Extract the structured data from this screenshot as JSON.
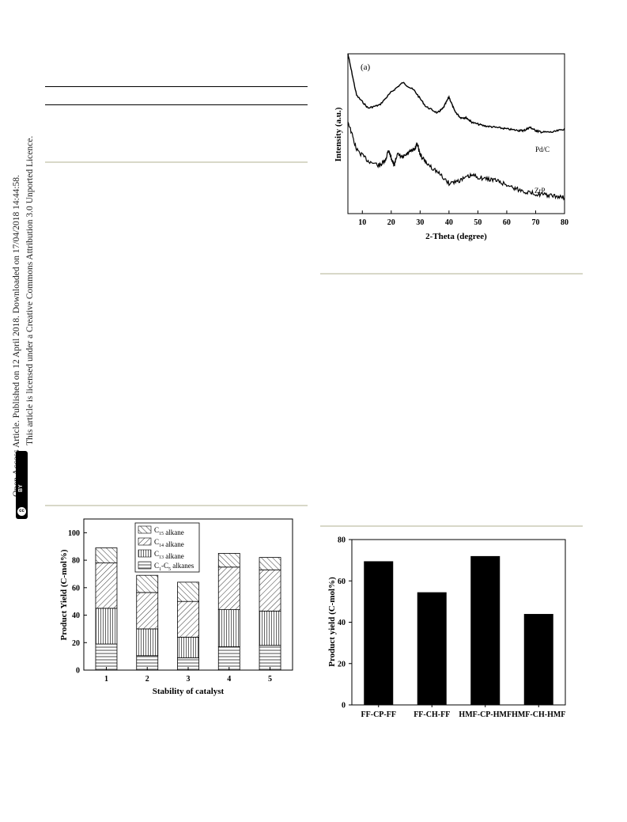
{
  "sidebar": {
    "line1": "Open Access Article. Published on 12 April 2018. Downloaded on 17/04/2018 14:44:58.",
    "line2": "This article is licensed under a Creative Commons Attribution 3.0 Unported Licence.",
    "badge_cc": "cc",
    "badge_by": "BY"
  },
  "chart_data": [
    {
      "type": "line",
      "panel_label": "(a)",
      "xlabel": "2-Theta (degree)",
      "ylabel": "Intensity (a.u.)",
      "xlim": [
        5,
        80
      ],
      "x_ticks": [
        "10",
        "20",
        "30",
        "40",
        "50",
        "60",
        "70",
        "80"
      ],
      "y_ticks_shown": false,
      "series": [
        {
          "name": "Pd/C",
          "x": [
            5,
            8,
            12,
            16,
            20,
            24,
            28,
            32,
            36,
            38,
            40,
            42,
            44,
            46,
            48,
            52,
            56,
            60,
            64,
            66,
            68,
            70,
            72,
            76,
            80
          ],
          "y": [
            1.0,
            0.74,
            0.66,
            0.68,
            0.76,
            0.82,
            0.77,
            0.67,
            0.63,
            0.66,
            0.73,
            0.64,
            0.6,
            0.6,
            0.57,
            0.55,
            0.54,
            0.53,
            0.52,
            0.52,
            0.54,
            0.52,
            0.51,
            0.51,
            0.53
          ]
        },
        {
          "name": "ZrP",
          "x": [
            5,
            8,
            12,
            16,
            18,
            19,
            20,
            21,
            22,
            24,
            26,
            28,
            29,
            30,
            32,
            36,
            40,
            44,
            48,
            52,
            56,
            60,
            64,
            68,
            72,
            76,
            80
          ],
          "y": [
            0.58,
            0.4,
            0.33,
            0.3,
            0.33,
            0.4,
            0.35,
            0.3,
            0.37,
            0.35,
            0.38,
            0.4,
            0.44,
            0.37,
            0.32,
            0.26,
            0.19,
            0.21,
            0.24,
            0.22,
            0.21,
            0.18,
            0.15,
            0.13,
            0.12,
            0.11,
            0.1
          ]
        }
      ]
    },
    {
      "type": "bar",
      "stacked": true,
      "xlabel": "Stability of catalyst",
      "ylabel": "Product Yield (C-mol%)",
      "ylim": [
        0,
        110
      ],
      "y_ticks": [
        0,
        20,
        40,
        60,
        80,
        100
      ],
      "categories": [
        "1",
        "2",
        "3",
        "4",
        "5"
      ],
      "legend_position": "top-center",
      "series": [
        {
          "name": "C1-C5 alkanes",
          "legend_main": "C",
          "legend_sub": "1",
          "legend_mid": "-C",
          "legend_sub2": "5",
          "legend_rest": " alkanes",
          "pattern": "horizontal",
          "values": [
            19,
            10.5,
            9,
            17,
            18
          ]
        },
        {
          "name": "C13 alkane",
          "legend_main": "C",
          "legend_sub": "13",
          "legend_mid": "",
          "legend_sub2": "",
          "legend_rest": " alkane",
          "pattern": "vertical",
          "values": [
            26,
            19.5,
            15,
            27,
            25
          ]
        },
        {
          "name": "C14 alkane",
          "legend_main": "C",
          "legend_sub": "14",
          "legend_mid": "",
          "legend_sub2": "",
          "legend_rest": " alkane",
          "pattern": "backslash",
          "values": [
            33,
            26.5,
            26,
            31,
            30
          ]
        },
        {
          "name": "C15 alkane",
          "legend_main": "C",
          "legend_sub": "15",
          "legend_mid": "",
          "legend_sub2": "",
          "legend_rest": " alkane",
          "pattern": "slash",
          "values": [
            11,
            12.5,
            14,
            10,
            9
          ]
        }
      ]
    },
    {
      "type": "bar",
      "xlabel": "",
      "ylabel": "Product yield (C-mol%)",
      "ylim": [
        0,
        80
      ],
      "y_ticks": [
        0,
        20,
        40,
        60,
        80
      ],
      "categories": [
        "FF-CP-FF",
        "FF-CH-FF",
        "HMF-CP-HMF",
        "HMF-CH-HMF"
      ],
      "values": [
        69.5,
        54.5,
        72,
        44
      ],
      "bar_color": "#000000"
    }
  ]
}
